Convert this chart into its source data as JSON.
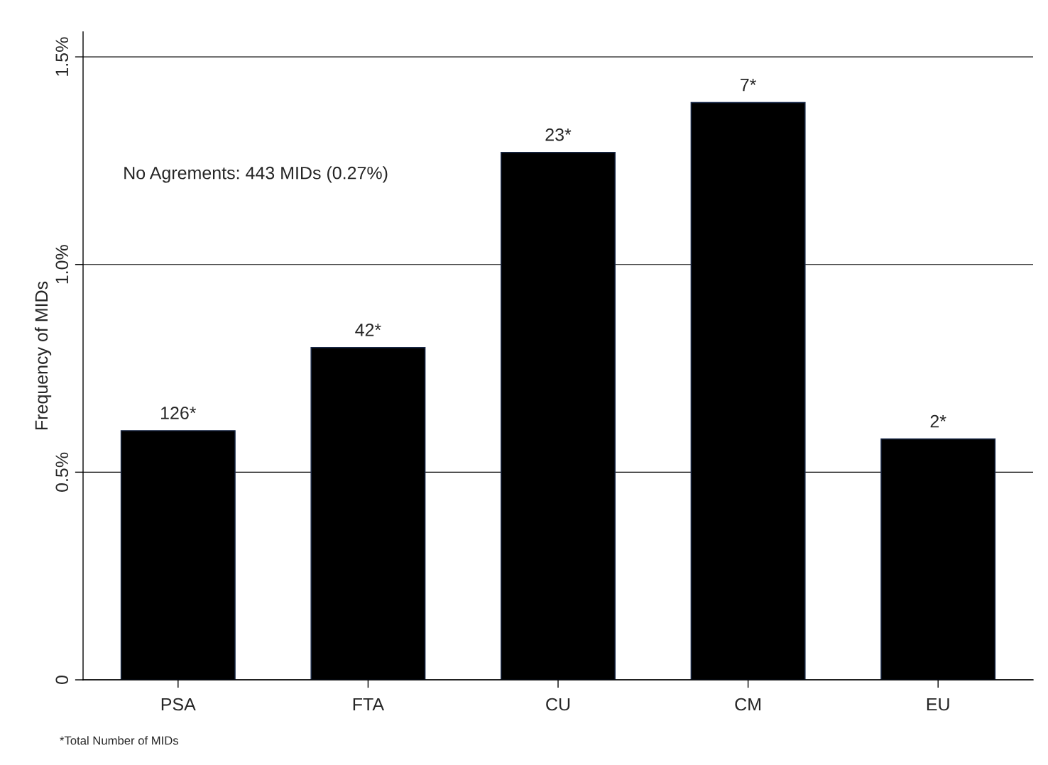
{
  "chart_data": {
    "type": "bar",
    "ylabel": "Frequency of MIDs",
    "categories": [
      "PSA",
      "FTA",
      "CU",
      "CM",
      "EU"
    ],
    "values": [
      0.6,
      0.8,
      1.27,
      1.39,
      0.58
    ],
    "color": "#000000",
    "ylim": [
      0,
      1.56
    ],
    "yticks": [
      0,
      {
        "value": 0.5,
        "label": "0.5%"
      },
      {
        "value": 1.0,
        "label": "1.0%"
      },
      {
        "value": 1.5,
        "label": "1.5%"
      }
    ],
    "grid": "y",
    "annotations": [
      "No Agrements: 443 MIDs (0.27%)",
      "*Total Number of MIDs",
      {
        "text": "126*",
        "x": "PSA",
        "y": 0.6
      },
      {
        "text": "42*",
        "x": "FTA",
        "y": 0.8
      },
      {
        "text": "23*",
        "x": "CU",
        "y": 1.27
      },
      {
        "text": "7*",
        "x": "CM",
        "y": 1.39
      },
      {
        "text": "2*",
        "x": "EU",
        "y": 0.58
      }
    ]
  }
}
